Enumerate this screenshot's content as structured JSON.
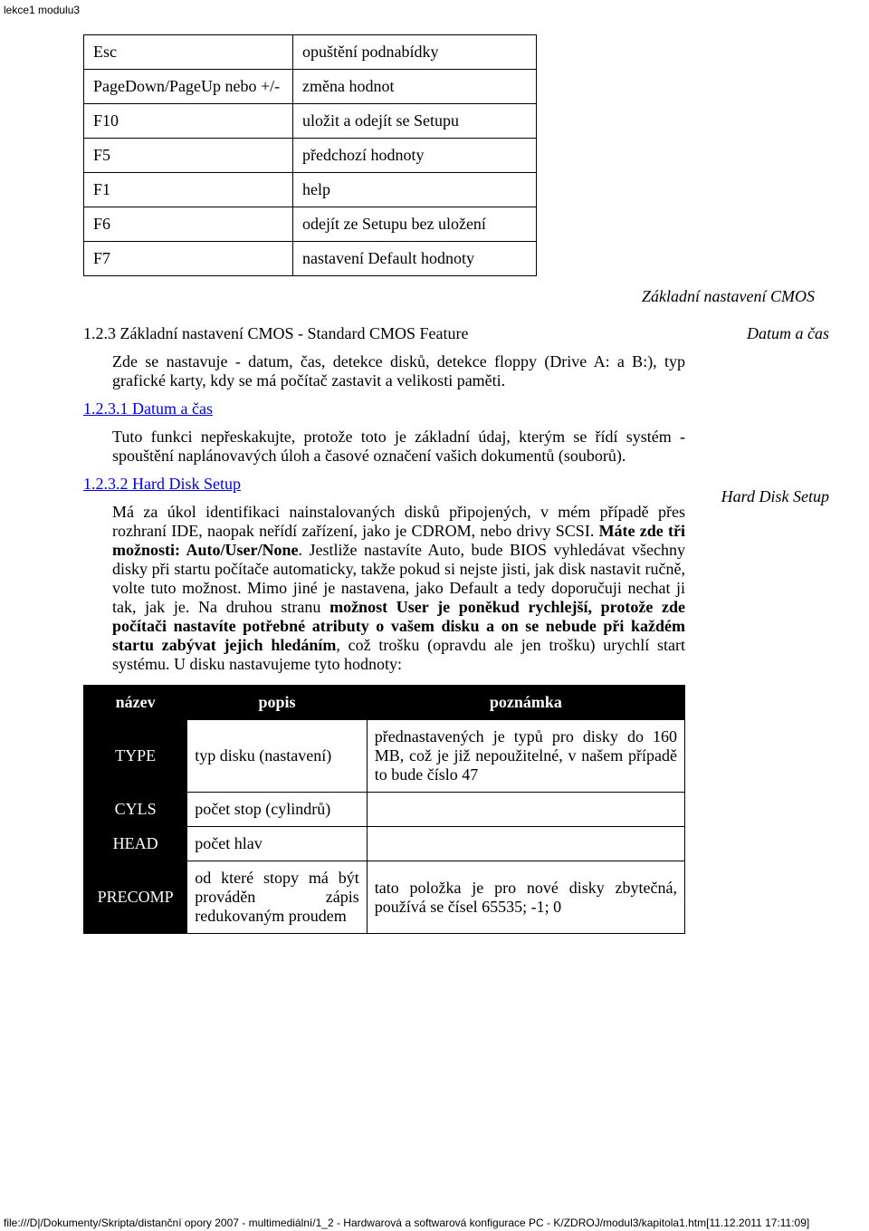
{
  "header": "lekce1 modulu3",
  "footer": "file:///D|/Dokumenty/Skripta/distanční opory 2007 - multimediální/1_2 - Hardwarová a softwarová konfigurace PC - K/ZDROJ/modul3/kapitola1.htm[11.12.2011 17:11:09]",
  "keys": [
    {
      "key": "Esc",
      "desc": "opuštění podnabídky"
    },
    {
      "key": "PageDown/PageUp nebo +/-",
      "desc": "změna hodnot"
    },
    {
      "key": "F10",
      "desc": "uložit a odejít se Setupu"
    },
    {
      "key": "F5",
      "desc": "předchozí hodnoty"
    },
    {
      "key": "F1",
      "desc": "help"
    },
    {
      "key": "F6",
      "desc": "odejít ze Setupu bez uložení"
    },
    {
      "key": "F7",
      "desc": "nastavení Default hodnoty"
    }
  ],
  "caption1": "Základní nastavení CMOS",
  "side": {
    "datum": "Datum a čas",
    "hdd": "Hard Disk Setup"
  },
  "s123": {
    "title": "1.2.3 Základní nastavení CMOS - Standard CMOS Feature",
    "p": "Zde se nastavuje - datum, čas, detekce disků, detekce floppy (Drive A: a B:), typ grafické karty, kdy se má počítač zastavit a velikosti paměti."
  },
  "s1231": {
    "link": "1.2.3.1 Datum a čas",
    "p": "Tuto funkci nepřeskakujte, protože toto je základní údaj, kterým se řídí systém - spouštění naplánovavých úloh a časové označení vašich dokumentů (souborů)."
  },
  "s1232": {
    "link": "1.2.3.2 Hard Disk Setup",
    "p1a": "Má za úkol identifikaci nainstalovaných disků připojených, v mém případě přes rozhraní IDE, naopak neřídí zařízení, jako je CDROM, nebo drivy SCSI. ",
    "p1b": "Máte zde tři možnosti: Auto/User/None",
    "p1c": ". Jestliže nastavíte Auto, bude BIOS vyhledávat všechny disky při startu počítače automaticky, takže pokud si nejste jisti, jak disk nastavit ručně, volte tuto možnost. Mimo jiné je nastavena, jako Default a tedy doporučuji nechat ji tak, jak je. Na druhou stranu ",
    "p1d": "možnost User je poněkud rychlejší, protože zde počítači nastavíte potřebné atributy o vašem disku a on se nebude při každém startu zabývat jejich hledáním",
    "p1e": ", což trošku (opravdu ale jen trošku) urychlí start systému. U disku nastavujeme tyto hodnoty:"
  },
  "attr_head": {
    "c1": "název",
    "c2": "popis",
    "c3": "poznámka"
  },
  "attrs": [
    {
      "name": "TYPE",
      "desc": "typ disku (nastavení)",
      "note": "přednastavených je typů pro disky do 160 MB, což je již nepoužitelné, v našem případě to bude číslo 47"
    },
    {
      "name": "CYLS",
      "desc": "počet stop (cylindrů)",
      "note": ""
    },
    {
      "name": "HEAD",
      "desc": "počet hlav",
      "note": ""
    },
    {
      "name": "PRECOMP",
      "desc": "od které stopy má být prováděn zápis redukovaným proudem",
      "note": "tato položka je pro nové disky zbytečná, používá se čísel 65535; -1; 0"
    }
  ]
}
